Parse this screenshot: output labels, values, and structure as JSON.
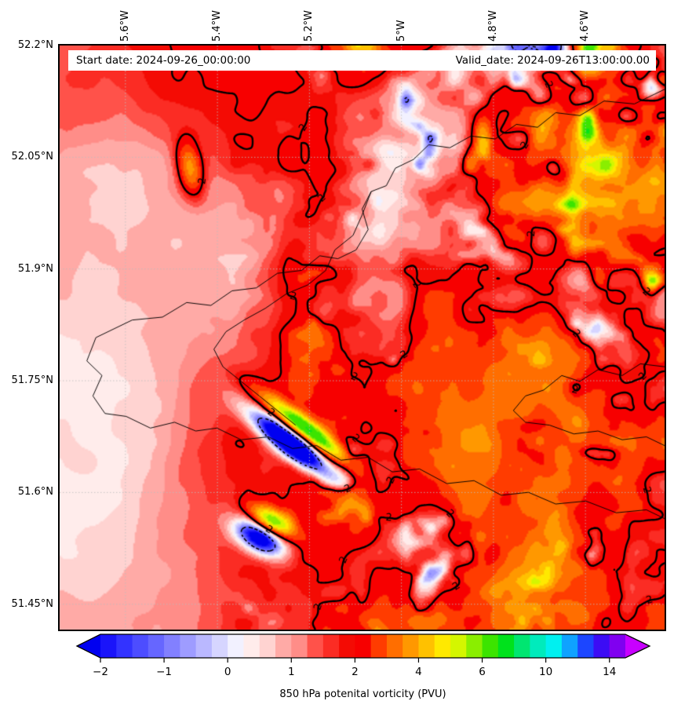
{
  "header": {
    "start_date_label": "Start date: 2024-09-26_00:00:00",
    "valid_date_label": "Valid_date: 2024-09-26T13:00:00.00"
  },
  "chart_data": {
    "type": "heatmap",
    "subtype": "filled_contour_map",
    "field": "850 hPa potential vorticity",
    "units": "PVU",
    "x_axis": {
      "ticks": [
        {
          "label": "5.6°W",
          "value": -5.6
        },
        {
          "label": "5.4°W",
          "value": -5.4
        },
        {
          "label": "5.2°W",
          "value": -5.2
        },
        {
          "label": "5°W",
          "value": -5.0
        },
        {
          "label": "4.8°W",
          "value": -4.8
        },
        {
          "label": "4.6°W",
          "value": -4.6
        }
      ],
      "range": [
        -5.743,
        -4.428
      ]
    },
    "y_axis": {
      "ticks": [
        {
          "label": "52.2°N",
          "value": 52.2
        },
        {
          "label": "52.05°N",
          "value": 52.05
        },
        {
          "label": "51.9°N",
          "value": 51.9
        },
        {
          "label": "51.75°N",
          "value": 51.75
        },
        {
          "label": "51.6°N",
          "value": 51.6
        },
        {
          "label": "51.45°N",
          "value": 51.45
        }
      ],
      "range": [
        51.416,
        52.2
      ]
    },
    "gridlines": {
      "style": "dotted",
      "color": "#bdbdbd",
      "opacity": 0.85
    },
    "contours": [
      {
        "level": 2,
        "label": "2",
        "line_style": "solid",
        "line_width": 2.4,
        "color": "#000000"
      },
      {
        "level": -1,
        "label": "",
        "line_style": "dashed",
        "line_width": 1.6,
        "color": "#000000"
      }
    ],
    "coastline_color": "#000000",
    "coastlines": [
      [
        [
          1.0,
          0.075
        ],
        [
          0.95,
          0.1
        ],
        [
          0.9,
          0.095
        ],
        [
          0.86,
          0.12
        ],
        [
          0.82,
          0.115
        ],
        [
          0.79,
          0.14
        ],
        [
          0.755,
          0.135
        ],
        [
          0.72,
          0.16
        ],
        [
          0.68,
          0.155
        ],
        [
          0.645,
          0.175
        ],
        [
          0.61,
          0.17
        ],
        [
          0.585,
          0.195
        ],
        [
          0.555,
          0.21
        ],
        [
          0.54,
          0.24
        ],
        [
          0.515,
          0.25
        ],
        [
          0.5,
          0.28
        ],
        [
          0.51,
          0.315
        ],
        [
          0.49,
          0.35
        ],
        [
          0.46,
          0.365
        ],
        [
          0.43,
          0.36
        ],
        [
          0.4,
          0.385
        ],
        [
          0.36,
          0.39
        ],
        [
          0.325,
          0.415
        ],
        [
          0.285,
          0.42
        ],
        [
          0.25,
          0.445
        ],
        [
          0.21,
          0.44
        ],
        [
          0.17,
          0.465
        ],
        [
          0.12,
          0.47
        ],
        [
          0.06,
          0.5
        ],
        [
          0.045,
          0.54
        ],
        [
          0.07,
          0.565
        ],
        [
          0.055,
          0.6
        ],
        [
          0.075,
          0.63
        ],
        [
          0.11,
          0.635
        ],
        [
          0.15,
          0.655
        ],
        [
          0.19,
          0.645
        ],
        [
          0.225,
          0.66
        ],
        [
          0.26,
          0.655
        ],
        [
          0.3,
          0.675
        ],
        [
          0.345,
          0.67
        ],
        [
          0.385,
          0.69
        ],
        [
          0.425,
          0.685
        ],
        [
          0.465,
          0.71
        ],
        [
          0.51,
          0.705
        ],
        [
          0.55,
          0.73
        ],
        [
          0.595,
          0.725
        ],
        [
          0.64,
          0.75
        ],
        [
          0.685,
          0.745
        ],
        [
          0.73,
          0.77
        ],
        [
          0.775,
          0.765
        ],
        [
          0.82,
          0.785
        ],
        [
          0.87,
          0.78
        ],
        [
          0.92,
          0.8
        ],
        [
          0.97,
          0.795
        ],
        [
          1.0,
          0.81
        ]
      ],
      [
        [
          0.515,
          0.25
        ],
        [
          0.5,
          0.29
        ],
        [
          0.485,
          0.325
        ],
        [
          0.455,
          0.35
        ],
        [
          0.44,
          0.385
        ],
        [
          0.41,
          0.41
        ],
        [
          0.375,
          0.425
        ],
        [
          0.34,
          0.45
        ],
        [
          0.305,
          0.47
        ],
        [
          0.275,
          0.49
        ],
        [
          0.255,
          0.52
        ],
        [
          0.27,
          0.55
        ],
        [
          0.3,
          0.575
        ],
        [
          0.33,
          0.6
        ],
        [
          0.36,
          0.625
        ],
        [
          0.39,
          0.65
        ]
      ],
      [
        [
          1.0,
          0.55
        ],
        [
          0.96,
          0.545
        ],
        [
          0.93,
          0.565
        ],
        [
          0.89,
          0.555
        ],
        [
          0.86,
          0.575
        ],
        [
          0.83,
          0.565
        ],
        [
          0.8,
          0.59
        ],
        [
          0.77,
          0.6
        ],
        [
          0.75,
          0.625
        ],
        [
          0.77,
          0.645
        ],
        [
          0.81,
          0.65
        ],
        [
          0.85,
          0.665
        ],
        [
          0.89,
          0.66
        ],
        [
          0.93,
          0.675
        ],
        [
          0.97,
          0.67
        ],
        [
          1.0,
          0.685
        ]
      ]
    ],
    "colorbar": {
      "label": "850 hPa potenital vorticity (PVU)",
      "orientation": "horizontal",
      "extend": "both",
      "boundaries": [
        -2,
        -1.75,
        -1.5,
        -1.25,
        -1,
        -0.75,
        -0.5,
        -0.25,
        0,
        0.25,
        0.5,
        0.75,
        1,
        1.25,
        1.5,
        1.75,
        2,
        2.5,
        3,
        3.5,
        4,
        4.5,
        5,
        5.5,
        6,
        7,
        8,
        9,
        10,
        11,
        12,
        13,
        14,
        16
      ],
      "colors": [
        "#1a14fa",
        "#3333ff",
        "#4d4dff",
        "#6666ff",
        "#8280ff",
        "#9e9cff",
        "#bab8ff",
        "#d6d5ff",
        "#f2f1ff",
        "#ffeceb",
        "#ffd3d1",
        "#ffaaa6",
        "#ff8d88",
        "#ff524a",
        "#fb2c24",
        "#f40b04",
        "#f70000",
        "#ff3c00",
        "#ff6e00",
        "#ff9800",
        "#ffc100",
        "#ffe900",
        "#d4f600",
        "#8aee00",
        "#3ce400",
        "#00e21c",
        "#00e671",
        "#00ebbc",
        "#00f0f0",
        "#0fa2ff",
        "#1c46ff",
        "#3c0cf5",
        "#8000f0"
      ],
      "under_color": "#0000f0",
      "over_color": "#c800ff",
      "ticks": [
        {
          "label": "−2",
          "value": -2
        },
        {
          "label": "−1",
          "value": -1
        },
        {
          "label": "0",
          "value": 0
        },
        {
          "label": "1",
          "value": 1
        },
        {
          "label": "2",
          "value": 2
        },
        {
          "label": "4",
          "value": 4
        },
        {
          "label": "6",
          "value": 6
        },
        {
          "label": "10",
          "value": 10
        },
        {
          "label": "14",
          "value": 14
        }
      ]
    }
  }
}
